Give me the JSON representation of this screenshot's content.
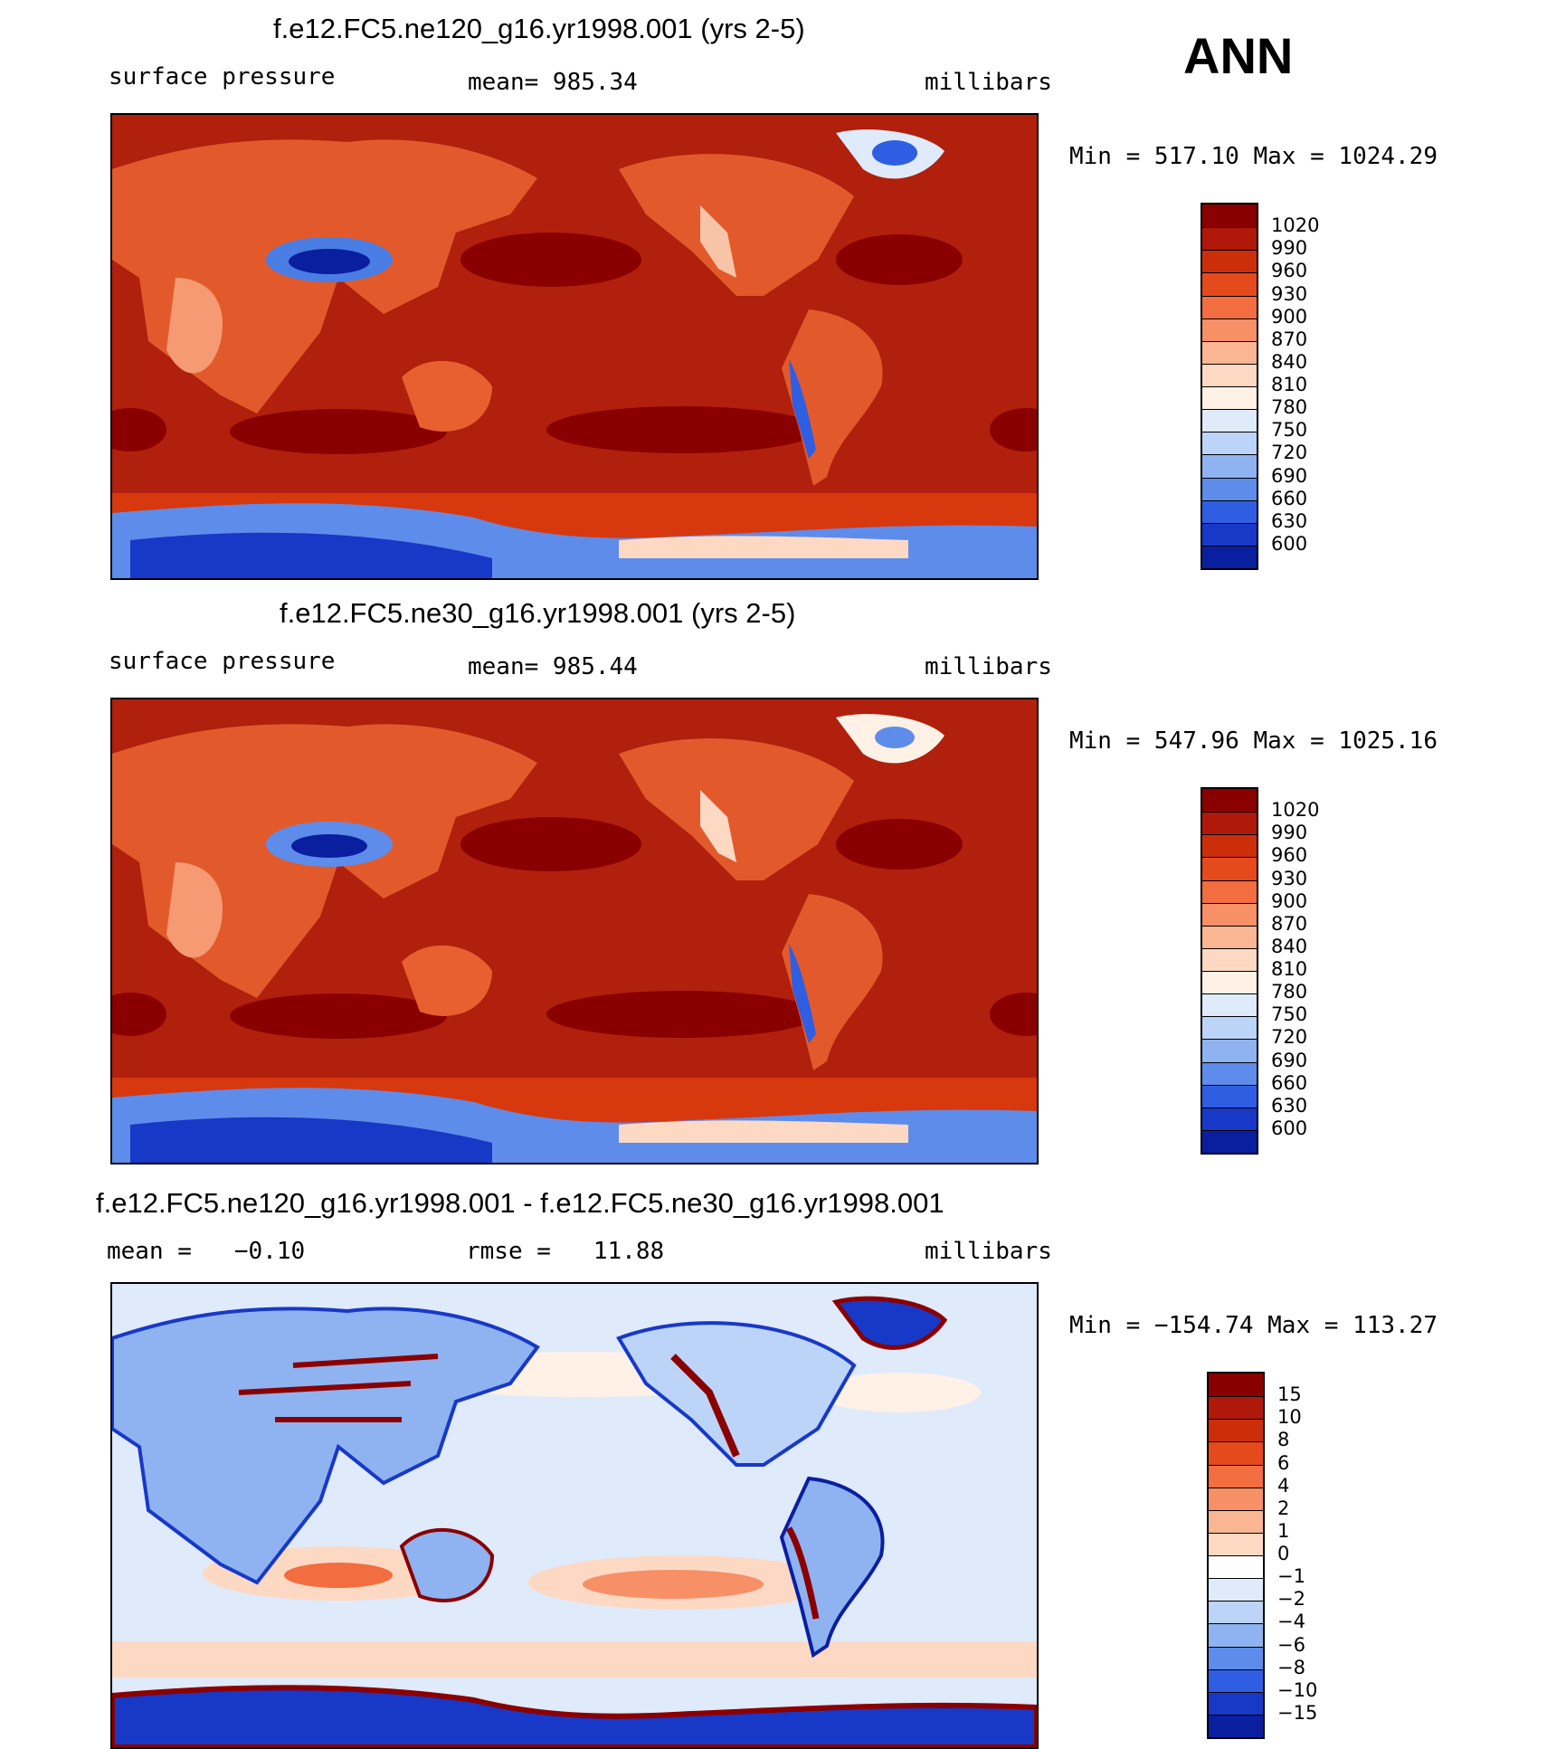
{
  "season": "ANN",
  "panels": [
    {
      "title": "f.e12.FC5.ne120_g16.yr1998.001 (yrs 2-5)",
      "left_label": "surface pressure",
      "center_label": "mean= 985.34",
      "right_label": "millibars",
      "minmax": "Min = 517.10 Max = 1024.29",
      "colorbar_levels": [
        "1020",
        "990",
        "960",
        "930",
        "900",
        "870",
        "840",
        "810",
        "780",
        "750",
        "720",
        "690",
        "660",
        "630",
        "600"
      ],
      "colorbar_colors": [
        "#8a0000",
        "#b0180a",
        "#cd2e0a",
        "#e54a1c",
        "#f26d3f",
        "#f78f67",
        "#fab592",
        "#fdd9c4",
        "#fff1e6",
        "#dfeafa",
        "#bcd4f7",
        "#8fb3f0",
        "#5e8ceb",
        "#2f5ee3",
        "#1838c8",
        "#0a1ea0"
      ]
    },
    {
      "title": "f.e12.FC5.ne30_g16.yr1998.001 (yrs 2-5)",
      "left_label": "surface pressure",
      "center_label": "mean= 985.44",
      "right_label": "millibars",
      "minmax": "Min = 547.96 Max = 1025.16",
      "colorbar_levels": [
        "1020",
        "990",
        "960",
        "930",
        "900",
        "870",
        "840",
        "810",
        "780",
        "750",
        "720",
        "690",
        "660",
        "630",
        "600"
      ],
      "colorbar_colors": [
        "#8a0000",
        "#b0180a",
        "#cd2e0a",
        "#e54a1c",
        "#f26d3f",
        "#f78f67",
        "#fab592",
        "#fdd9c4",
        "#fff1e6",
        "#dfeafa",
        "#bcd4f7",
        "#8fb3f0",
        "#5e8ceb",
        "#2f5ee3",
        "#1838c8",
        "#0a1ea0"
      ]
    },
    {
      "title": "f.e12.FC5.ne120_g16.yr1998.001 - f.e12.FC5.ne30_g16.yr1998.001",
      "left_label": "mean =   −0.10",
      "center_label": "rmse =   11.88",
      "right_label": "millibars",
      "minmax": "Min = −154.74 Max = 113.27",
      "colorbar_levels": [
        "15",
        "10",
        "8",
        "6",
        "4",
        "2",
        "1",
        "0",
        "−1",
        "−2",
        "−4",
        "−6",
        "−8",
        "−10",
        "−15"
      ],
      "colorbar_colors": [
        "#8a0000",
        "#b0180a",
        "#cd2e0a",
        "#e54a1c",
        "#f26d3f",
        "#f78f67",
        "#fab592",
        "#fdd9c4",
        "#ffffff",
        "#dfeafa",
        "#bcd4f7",
        "#8fb3f0",
        "#5e8ceb",
        "#2f5ee3",
        "#1838c8",
        "#0a1ea0"
      ]
    }
  ]
}
